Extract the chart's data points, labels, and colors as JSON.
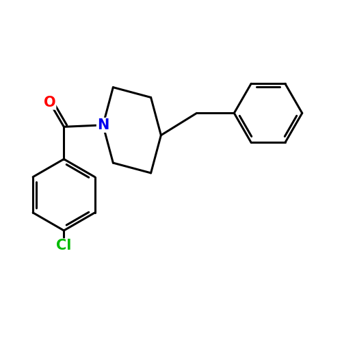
{
  "background_color": "#ffffff",
  "bond_color": "#000000",
  "bond_width": 2.2,
  "atom_colors": {
    "N": "#0000ee",
    "O": "#ff0000",
    "Cl": "#00bb00"
  },
  "font_size": 15,
  "fig_size": [
    5.0,
    5.0
  ],
  "dpi": 100
}
